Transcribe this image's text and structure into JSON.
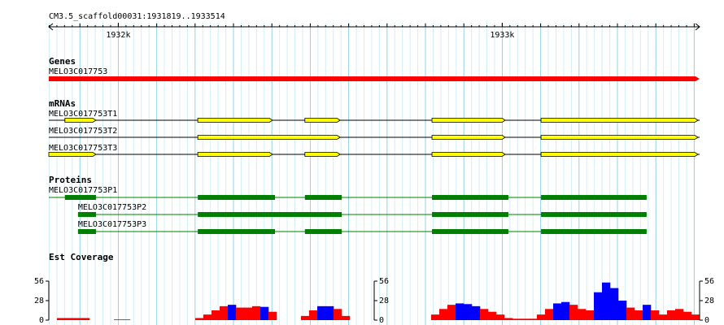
{
  "ruler": {
    "label": "CM3.5_scaffold00031:1931819..1933514",
    "range": [
      1931819,
      1933514
    ],
    "ticks": [
      {
        "value": 1932000,
        "label": "1932k"
      },
      {
        "value": 1933000,
        "label": "1933k"
      }
    ]
  },
  "tracks": [
    {
      "title": "Genes",
      "kind": "gene",
      "color": "#ff0000",
      "features": [
        {
          "name": "MELO3C017753",
          "start": 1931819,
          "end": 1933514
        }
      ]
    },
    {
      "title": "mRNAs",
      "kind": "mrna",
      "color": "#ffff00",
      "features": [
        {
          "name": "MELO3C017753T1",
          "start": 1931819,
          "end": 1933514,
          "exons": [
            [
              1931861,
              1931942
            ],
            [
              1932207,
              1932402
            ],
            [
              1932486,
              1932578
            ],
            [
              1932817,
              1933008
            ],
            [
              1933101,
              1933510
            ]
          ]
        },
        {
          "name": "MELO3C017753T2",
          "start": 1931819,
          "end": 1933514,
          "exons": [
            [
              1932207,
              1932578
            ],
            [
              1932817,
              1933008
            ],
            [
              1933101,
              1933510
            ]
          ]
        },
        {
          "name": "MELO3C017753T3",
          "start": 1931819,
          "end": 1933514,
          "exons": [
            [
              1931819,
              1931942
            ],
            [
              1932207,
              1932402
            ],
            [
              1932486,
              1932578
            ],
            [
              1932817,
              1933008
            ],
            [
              1933101,
              1933510
            ]
          ]
        }
      ]
    },
    {
      "title": "Proteins",
      "kind": "protein",
      "color": "#008000",
      "features": [
        {
          "name": "MELO3C017753P1",
          "start": 1931819,
          "end": 1933376,
          "exons": [
            [
              1931861,
              1931942
            ],
            [
              1932207,
              1932408
            ],
            [
              1932486,
              1932582
            ],
            [
              1932817,
              1933016
            ],
            [
              1933101,
              1933376
            ]
          ]
        },
        {
          "name": "MELO3C017753P2",
          "start": 1931895,
          "end": 1933376,
          "exons": [
            [
              1931895,
              1931942
            ],
            [
              1932207,
              1932582
            ],
            [
              1932817,
              1933016
            ],
            [
              1933101,
              1933376
            ]
          ]
        },
        {
          "name": "MELO3C017753P3",
          "start": 1931895,
          "end": 1933376,
          "exons": [
            [
              1931895,
              1931942
            ],
            [
              1932207,
              1932408
            ],
            [
              1932486,
              1932582
            ],
            [
              1932817,
              1933016
            ],
            [
              1933101,
              1933376
            ]
          ]
        }
      ]
    }
  ],
  "coverage": {
    "title": "Est Coverage",
    "ylim": [
      0,
      56
    ],
    "yticks": [
      0,
      28,
      56
    ],
    "values": [
      0,
      3,
      3,
      3,
      3,
      0,
      0,
      0,
      1,
      1,
      0,
      0,
      0,
      0,
      0,
      0,
      0,
      0,
      3,
      8,
      14,
      20,
      22,
      18,
      18,
      20,
      19,
      12,
      0,
      0,
      0,
      6,
      14,
      20,
      20,
      16,
      6,
      0,
      0,
      0,
      0,
      0,
      0,
      0,
      0,
      0,
      0,
      8,
      16,
      22,
      24,
      23,
      20,
      16,
      12,
      8,
      3,
      2,
      2,
      2,
      8,
      16,
      24,
      26,
      22,
      16,
      14,
      40,
      54,
      46,
      28,
      18,
      14,
      22,
      14,
      8,
      14,
      16,
      12,
      8
    ],
    "colors": [
      "red",
      "red",
      "red",
      "red",
      "red",
      "red",
      "red",
      "red",
      "red",
      "red",
      "red",
      "red",
      "red",
      "red",
      "red",
      "red",
      "red",
      "red",
      "red",
      "red",
      "red",
      "red",
      "blue",
      "red",
      "red",
      "red",
      "blue",
      "red",
      "red",
      "red",
      "red",
      "red",
      "red",
      "blue",
      "blue",
      "red",
      "red",
      "red",
      "red",
      "red",
      "red",
      "red",
      "red",
      "red",
      "red",
      "red",
      "red",
      "red",
      "red",
      "red",
      "blue",
      "blue",
      "blue",
      "red",
      "red",
      "red",
      "red",
      "red",
      "red",
      "red",
      "red",
      "red",
      "blue",
      "blue",
      "red",
      "red",
      "red",
      "blue",
      "blue",
      "blue",
      "blue",
      "red",
      "red",
      "blue",
      "red",
      "red",
      "red",
      "red",
      "red",
      "red"
    ]
  }
}
